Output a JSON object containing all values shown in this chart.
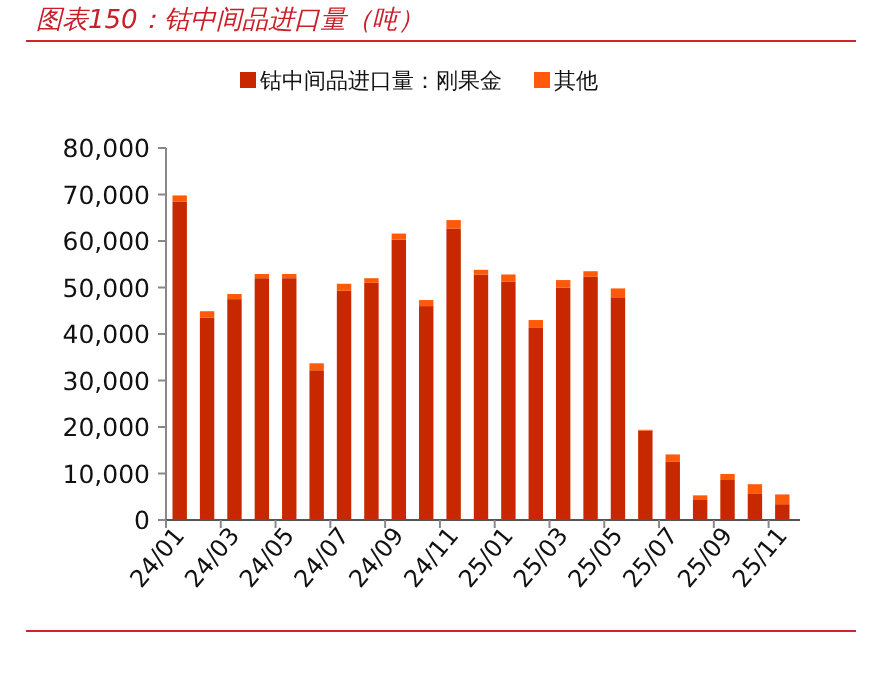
{
  "chart_data": {
    "type": "bar",
    "title": "图表150：钴中间品进口量（吨）",
    "stacked": true,
    "legend": "top",
    "categories": [
      "24/01",
      null,
      "24/03",
      null,
      "24/05",
      null,
      "24/07",
      null,
      "24/09",
      null,
      "24/11",
      null,
      "25/01",
      null,
      "25/03",
      null,
      "25/05",
      null,
      "25/07",
      null,
      "25/09",
      null,
      "25/11"
    ],
    "ylim": [
      0,
      80000
    ],
    "yticks": [
      {
        "value": 0,
        "label": "0"
      },
      {
        "value": 10000,
        "label": "10,000"
      },
      {
        "value": 20000,
        "label": "20,000"
      },
      {
        "value": 30000,
        "label": "30,000"
      },
      {
        "value": 40000,
        "label": "40,000"
      },
      {
        "value": 50000,
        "label": "50,000"
      },
      {
        "value": 60000,
        "label": "60,000"
      },
      {
        "value": 70000,
        "label": "70,000"
      },
      {
        "value": 80000,
        "label": "80,000"
      }
    ],
    "series": [
      {
        "name": "钴中间品进口量：刚果金",
        "color": "#c82800",
        "values": [
          68500,
          43500,
          47500,
          52000,
          52000,
          32200,
          49300,
          51000,
          60300,
          46000,
          62700,
          52800,
          51300,
          41300,
          50000,
          52300,
          47900,
          19200,
          12500,
          4300,
          8600,
          5600,
          3400
        ]
      },
      {
        "name": "其他",
        "color": "#ff5a0a",
        "values": [
          1300,
          1400,
          1100,
          900,
          900,
          1500,
          1500,
          1000,
          1300,
          1300,
          1800,
          1000,
          1500,
          1700,
          1600,
          1200,
          1900,
          200,
          1600,
          1000,
          1300,
          2100,
          2100
        ]
      }
    ]
  }
}
